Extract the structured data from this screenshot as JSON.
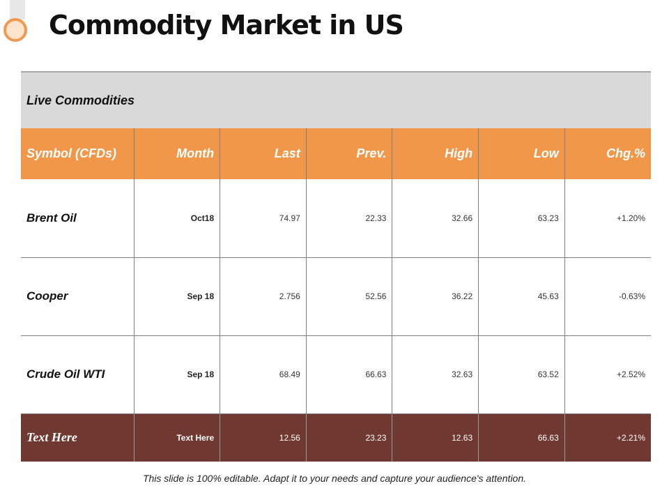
{
  "slide": {
    "title": "Commodity Market in US",
    "footnote": "This slide is 100% editable. Adapt it to your needs and capture your audience's attention."
  },
  "table": {
    "section_title": "Live Commodities",
    "columns": [
      "Symbol (CFDs)",
      "Month",
      "Last",
      "Prev.",
      "High",
      "Low",
      "Chg.%"
    ],
    "rows": [
      {
        "symbol": "Brent Oil",
        "month": "Oct18",
        "last": "74.97",
        "prev": "22.33",
        "high": "32.66",
        "low": "63.23",
        "chg": "+1.20%"
      },
      {
        "symbol": "Cooper",
        "month": "Sep 18",
        "last": "2.756",
        "prev": "52.56",
        "high": "36.22",
        "low": "45.63",
        "chg": "-0.63%"
      },
      {
        "symbol": "Crude Oil WTI",
        "month": "Sep 18",
        "last": "68.49",
        "prev": "66.63",
        "high": "32.63",
        "low": "63.52",
        "chg": "+2.52%"
      }
    ],
    "footer_row": {
      "symbol": "Text Here",
      "month": "Text Here",
      "last": "12.56",
      "prev": "23.23",
      "high": "12.63",
      "low": "66.63",
      "chg": "+2.21%"
    }
  },
  "colors": {
    "header_orange": "#f0974a",
    "footer_brown": "#6f3830",
    "section_gray": "#d9d9d9",
    "accent_circle": "#ef9a4f"
  }
}
